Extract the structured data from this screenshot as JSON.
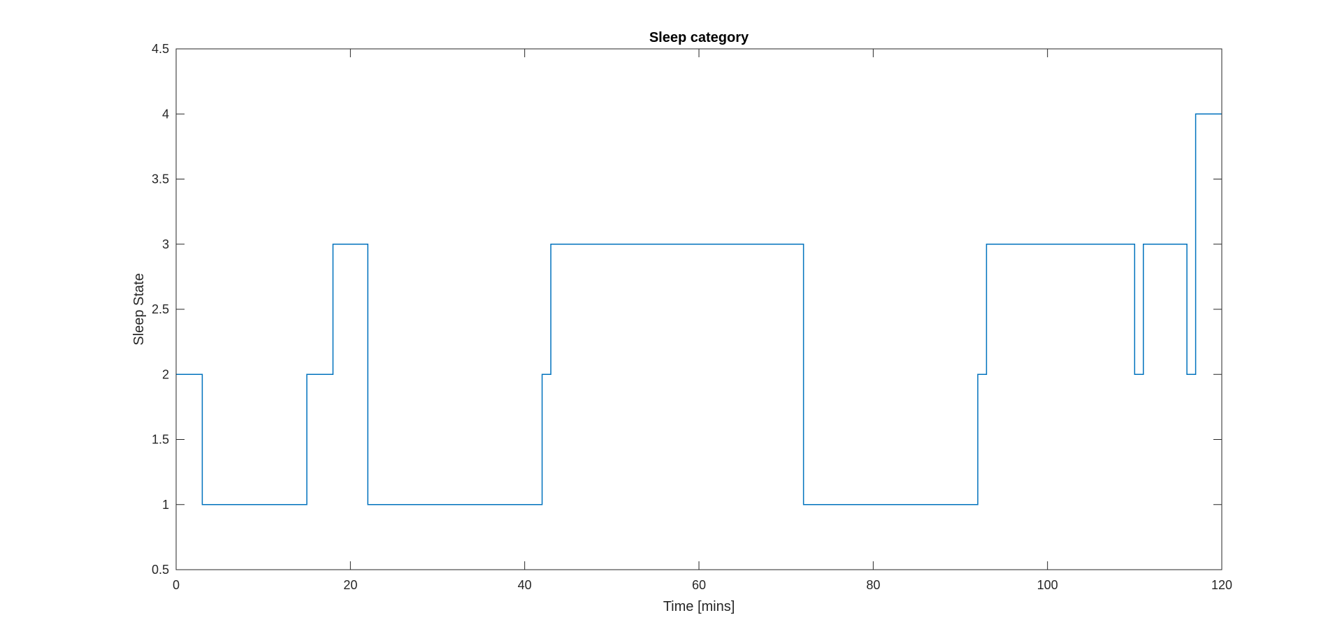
{
  "chart_data": {
    "type": "line",
    "title": "Sleep category",
    "xlabel": "Time [mins]",
    "ylabel": "Sleep State",
    "xlim": [
      0,
      120
    ],
    "ylim": [
      0.5,
      4.5
    ],
    "x_ticks": [
      0,
      20,
      40,
      60,
      80,
      100,
      120
    ],
    "y_ticks": [
      0.5,
      1,
      1.5,
      2,
      2.5,
      3,
      3.5,
      4,
      4.5
    ],
    "x_tick_labels": [
      "0",
      "20",
      "40",
      "60",
      "80",
      "100",
      "120"
    ],
    "y_tick_labels": [
      "0.5",
      "1",
      "1.5",
      "2",
      "2.5",
      "3",
      "3.5",
      "4",
      "4.5"
    ],
    "grid": false,
    "line_style": "step",
    "series": [
      {
        "color": "#0072bd",
        "points": [
          [
            0,
            2
          ],
          [
            3,
            2
          ],
          [
            3,
            1
          ],
          [
            15,
            1
          ],
          [
            15,
            2
          ],
          [
            18,
            2
          ],
          [
            18,
            3
          ],
          [
            22,
            3
          ],
          [
            22,
            1
          ],
          [
            42,
            1
          ],
          [
            42,
            2
          ],
          [
            43,
            2
          ],
          [
            43,
            3
          ],
          [
            72,
            3
          ],
          [
            72,
            1
          ],
          [
            92,
            1
          ],
          [
            92,
            2
          ],
          [
            93,
            2
          ],
          [
            93,
            3
          ],
          [
            110,
            3
          ],
          [
            110,
            2
          ],
          [
            111,
            2
          ],
          [
            111,
            3
          ],
          [
            116,
            3
          ],
          [
            116,
            2
          ],
          [
            117,
            2
          ],
          [
            117,
            4
          ],
          [
            120,
            4
          ]
        ]
      }
    ]
  }
}
